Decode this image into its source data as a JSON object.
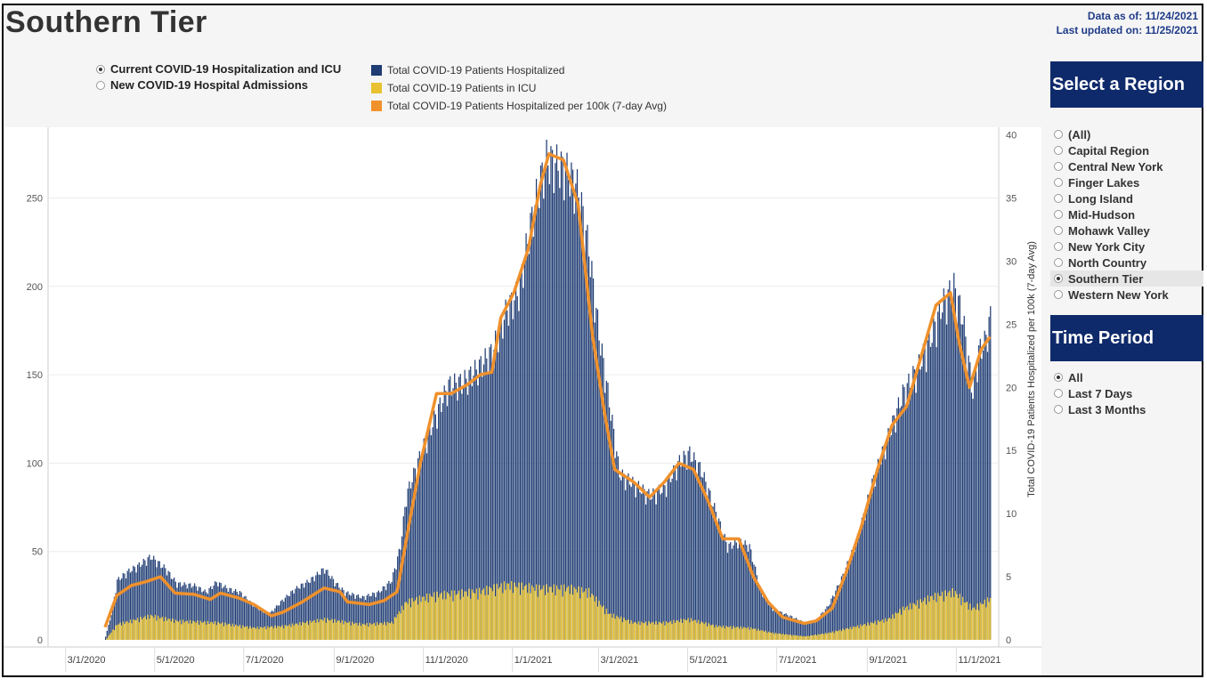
{
  "header": {
    "title": "Southern Tier",
    "data_as_of": "Data as of: 11/24/2021",
    "last_updated": "Last updated on: 11/25/2021"
  },
  "view_options": [
    {
      "label": "Current COVID-19 Hospitalization and ICU",
      "selected": true
    },
    {
      "label": "New COVID-19 Hospital Admissions",
      "selected": false
    }
  ],
  "legend": [
    {
      "label": "Total COVID-19 Patients Hospitalized",
      "color": "#1f3c73"
    },
    {
      "label": "Total COVID-19 Patients in ICU",
      "color": "#e8c232"
    },
    {
      "label": "Total COVID-19 Patients Hospitalized per 100k (7-day Avg)",
      "color": "#f0912c"
    }
  ],
  "region_panel": {
    "title": "Select a Region",
    "items": [
      {
        "label": "(All)",
        "selected": false
      },
      {
        "label": "Capital Region",
        "selected": false
      },
      {
        "label": "Central New York",
        "selected": false
      },
      {
        "label": "Finger Lakes",
        "selected": false
      },
      {
        "label": "Long Island",
        "selected": false
      },
      {
        "label": "Mid-Hudson",
        "selected": false
      },
      {
        "label": "Mohawk Valley",
        "selected": false
      },
      {
        "label": "New York City",
        "selected": false
      },
      {
        "label": "North Country",
        "selected": false
      },
      {
        "label": "Southern Tier",
        "selected": true
      },
      {
        "label": "Western New York",
        "selected": false
      }
    ]
  },
  "time_panel": {
    "title": "Time Period",
    "items": [
      {
        "label": "All",
        "selected": true
      },
      {
        "label": "Last 7 Days",
        "selected": false
      },
      {
        "label": "Last 3 Months",
        "selected": false
      }
    ]
  },
  "chart_data": {
    "type": "bar",
    "colors": {
      "hospitalized": "#1f3c73",
      "icu": "#e8c232",
      "avg_line": "#f0912c"
    },
    "x_range": [
      "2020-02-18",
      "2021-11-30"
    ],
    "x_ticks": [
      "3/1/2020",
      "5/1/2020",
      "7/1/2020",
      "9/1/2020",
      "11/1/2020",
      "1/1/2021",
      "3/1/2021",
      "5/1/2021",
      "7/1/2021",
      "9/1/2021",
      "11/1/2021"
    ],
    "y_left": {
      "ticks": [
        0,
        50,
        100,
        150,
        200,
        250
      ],
      "ylim": [
        0,
        290
      ]
    },
    "y_right": {
      "label": "Total COVID-19 Patients Hospitalized per 100k (7-day Avg)",
      "ticks": [
        0,
        5,
        10,
        15,
        20,
        25,
        30,
        35,
        40
      ],
      "ylim": [
        0,
        40.6
      ]
    },
    "series": [
      {
        "name": "Total COVID-19 Patients Hospitalized",
        "axis": "left",
        "points": [
          [
            "2020-03-28",
            2
          ],
          [
            "2020-04-01",
            15
          ],
          [
            "2020-04-05",
            35
          ],
          [
            "2020-04-12",
            40
          ],
          [
            "2020-04-20",
            44
          ],
          [
            "2020-04-28",
            49
          ],
          [
            "2020-05-08",
            42
          ],
          [
            "2020-05-16",
            33
          ],
          [
            "2020-05-28",
            32
          ],
          [
            "2020-06-05",
            28
          ],
          [
            "2020-06-12",
            34
          ],
          [
            "2020-06-20",
            30
          ],
          [
            "2020-06-28",
            28
          ],
          [
            "2020-07-08",
            20
          ],
          [
            "2020-07-18",
            15
          ],
          [
            "2020-07-28",
            24
          ],
          [
            "2020-08-05",
            30
          ],
          [
            "2020-08-15",
            35
          ],
          [
            "2020-08-25",
            42
          ],
          [
            "2020-09-01",
            34
          ],
          [
            "2020-09-08",
            28
          ],
          [
            "2020-09-20",
            25
          ],
          [
            "2020-10-01",
            28
          ],
          [
            "2020-10-10",
            35
          ],
          [
            "2020-10-16",
            55
          ],
          [
            "2020-10-20",
            85
          ],
          [
            "2020-10-28",
            105
          ],
          [
            "2020-11-08",
            130
          ],
          [
            "2020-11-18",
            150
          ],
          [
            "2020-11-28",
            152
          ],
          [
            "2020-12-08",
            160
          ],
          [
            "2020-12-18",
            170
          ],
          [
            "2020-12-28",
            195
          ],
          [
            "2021-01-05",
            205
          ],
          [
            "2021-01-12",
            240
          ],
          [
            "2021-01-18",
            265
          ],
          [
            "2021-01-24",
            283
          ],
          [
            "2021-02-01",
            280
          ],
          [
            "2021-02-08",
            275
          ],
          [
            "2021-02-15",
            265
          ],
          [
            "2021-02-22",
            230
          ],
          [
            "2021-03-01",
            180
          ],
          [
            "2021-03-08",
            140
          ],
          [
            "2021-03-15",
            98
          ],
          [
            "2021-03-25",
            92
          ],
          [
            "2021-04-05",
            85
          ],
          [
            "2021-04-15",
            90
          ],
          [
            "2021-04-25",
            105
          ],
          [
            "2021-05-02",
            110
          ],
          [
            "2021-05-10",
            100
          ],
          [
            "2021-05-20",
            75
          ],
          [
            "2021-05-28",
            55
          ],
          [
            "2021-06-05",
            58
          ],
          [
            "2021-06-12",
            55
          ],
          [
            "2021-06-20",
            28
          ],
          [
            "2021-06-28",
            18
          ],
          [
            "2021-07-10",
            14
          ],
          [
            "2021-07-20",
            10
          ],
          [
            "2021-07-28",
            12
          ],
          [
            "2021-08-05",
            20
          ],
          [
            "2021-08-15",
            38
          ],
          [
            "2021-08-25",
            60
          ],
          [
            "2021-09-05",
            95
          ],
          [
            "2021-09-15",
            120
          ],
          [
            "2021-09-25",
            145
          ],
          [
            "2021-10-05",
            160
          ],
          [
            "2021-10-15",
            180
          ],
          [
            "2021-10-22",
            198
          ],
          [
            "2021-10-30",
            208
          ],
          [
            "2021-11-05",
            190
          ],
          [
            "2021-11-12",
            145
          ],
          [
            "2021-11-16",
            170
          ],
          [
            "2021-11-20",
            175
          ],
          [
            "2021-11-24",
            190
          ]
        ]
      },
      {
        "name": "Total COVID-19 Patients in ICU",
        "axis": "left",
        "points": [
          [
            "2020-03-28",
            0
          ],
          [
            "2020-04-05",
            9
          ],
          [
            "2020-04-28",
            14
          ],
          [
            "2020-05-16",
            11
          ],
          [
            "2020-06-12",
            10
          ],
          [
            "2020-07-08",
            7
          ],
          [
            "2020-07-28",
            8
          ],
          [
            "2020-08-25",
            12
          ],
          [
            "2020-09-20",
            9
          ],
          [
            "2020-10-10",
            10
          ],
          [
            "2020-10-20",
            22
          ],
          [
            "2020-11-08",
            26
          ],
          [
            "2020-12-08",
            28
          ],
          [
            "2020-12-28",
            32
          ],
          [
            "2021-01-18",
            30
          ],
          [
            "2021-02-08",
            30
          ],
          [
            "2021-02-22",
            28
          ],
          [
            "2021-03-08",
            15
          ],
          [
            "2021-03-25",
            10
          ],
          [
            "2021-04-15",
            10
          ],
          [
            "2021-05-02",
            12
          ],
          [
            "2021-05-20",
            8
          ],
          [
            "2021-06-12",
            7
          ],
          [
            "2021-06-28",
            4
          ],
          [
            "2021-07-20",
            2
          ],
          [
            "2021-08-05",
            4
          ],
          [
            "2021-08-25",
            8
          ],
          [
            "2021-09-15",
            12
          ],
          [
            "2021-09-25",
            18
          ],
          [
            "2021-10-15",
            25
          ],
          [
            "2021-10-30",
            28
          ],
          [
            "2021-11-12",
            18
          ],
          [
            "2021-11-24",
            24
          ]
        ]
      },
      {
        "name": "Total COVID-19 Patients Hospitalized per 100k (7-day Avg)",
        "axis": "right",
        "points": [
          [
            "2020-03-28",
            1.0
          ],
          [
            "2020-04-05",
            3.5
          ],
          [
            "2020-04-15",
            4.3
          ],
          [
            "2020-04-25",
            4.6
          ],
          [
            "2020-05-05",
            5.0
          ],
          [
            "2020-05-15",
            3.7
          ],
          [
            "2020-05-28",
            3.6
          ],
          [
            "2020-06-08",
            3.2
          ],
          [
            "2020-06-15",
            3.7
          ],
          [
            "2020-06-28",
            3.3
          ],
          [
            "2020-07-08",
            2.8
          ],
          [
            "2020-07-20",
            1.9
          ],
          [
            "2020-07-28",
            2.2
          ],
          [
            "2020-08-10",
            3.0
          ],
          [
            "2020-08-25",
            4.1
          ],
          [
            "2020-09-05",
            3.8
          ],
          [
            "2020-09-10",
            3.0
          ],
          [
            "2020-09-25",
            2.8
          ],
          [
            "2020-10-05",
            3.1
          ],
          [
            "2020-10-14",
            3.8
          ],
          [
            "2020-10-22",
            9.0
          ],
          [
            "2020-10-30",
            14.0
          ],
          [
            "2020-11-10",
            19.5
          ],
          [
            "2020-11-20",
            19.5
          ],
          [
            "2020-12-01",
            20.2
          ],
          [
            "2020-12-10",
            21.0
          ],
          [
            "2020-12-18",
            21.2
          ],
          [
            "2020-12-24",
            25.5
          ],
          [
            "2021-01-02",
            27.5
          ],
          [
            "2021-01-12",
            31.0
          ],
          [
            "2021-01-20",
            36.0
          ],
          [
            "2021-01-26",
            38.5
          ],
          [
            "2021-02-05",
            38.0
          ],
          [
            "2021-02-15",
            34.5
          ],
          [
            "2021-02-25",
            24.0
          ],
          [
            "2021-03-05",
            18.0
          ],
          [
            "2021-03-12",
            13.5
          ],
          [
            "2021-03-25",
            12.5
          ],
          [
            "2021-04-05",
            11.3
          ],
          [
            "2021-04-15",
            12.5
          ],
          [
            "2021-04-25",
            14.0
          ],
          [
            "2021-05-05",
            13.5
          ],
          [
            "2021-05-15",
            11.0
          ],
          [
            "2021-05-25",
            8.0
          ],
          [
            "2021-06-05",
            8.0
          ],
          [
            "2021-06-15",
            5.0
          ],
          [
            "2021-06-25",
            3.0
          ],
          [
            "2021-07-05",
            1.8
          ],
          [
            "2021-07-20",
            1.3
          ],
          [
            "2021-07-28",
            1.5
          ],
          [
            "2021-08-08",
            2.5
          ],
          [
            "2021-08-18",
            5.5
          ],
          [
            "2021-08-28",
            9.0
          ],
          [
            "2021-09-08",
            13.5
          ],
          [
            "2021-09-18",
            17.0
          ],
          [
            "2021-09-28",
            18.5
          ],
          [
            "2021-10-08",
            22.5
          ],
          [
            "2021-10-18",
            26.5
          ],
          [
            "2021-10-28",
            27.5
          ],
          [
            "2021-11-03",
            23.5
          ],
          [
            "2021-11-10",
            20.0
          ],
          [
            "2021-11-18",
            23.0
          ],
          [
            "2021-11-24",
            24.0
          ]
        ]
      }
    ]
  }
}
